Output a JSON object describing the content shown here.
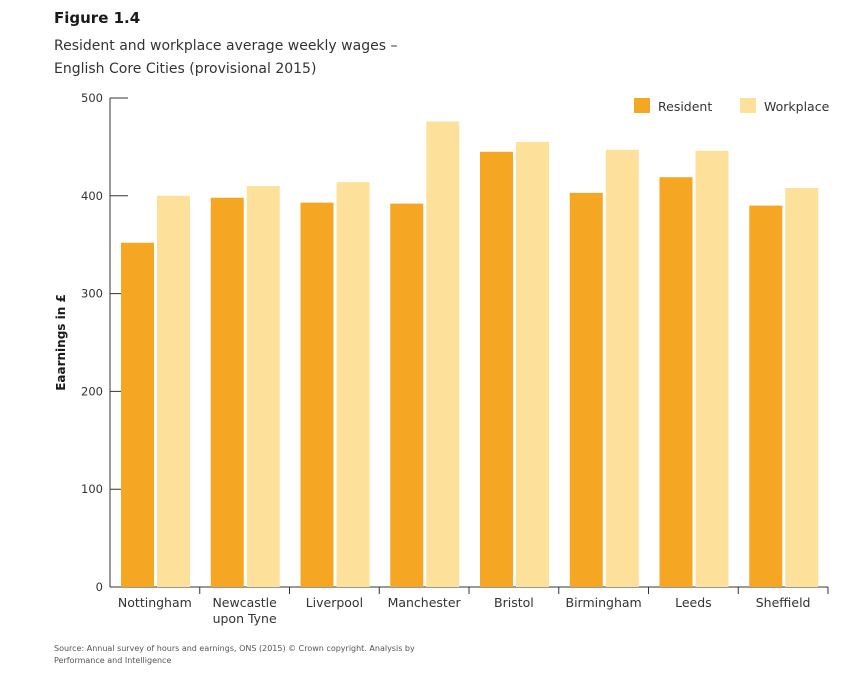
{
  "figure_label": "Figure 1.4",
  "title_lines": [
    "Resident and workplace average weekly wages –",
    "English Core Cities (provisional 2015)"
  ],
  "source_lines": [
    "Source: Annual survey of hours and earnings, ONS (2015) © Crown copyright. Analysis by",
    "Performance and Intelligence"
  ],
  "chart_data": {
    "type": "bar",
    "title": "Resident and workplace average weekly wages – English Core Cities (provisional 2015)",
    "ylabel": "Eaarnings in £",
    "xlabel": "",
    "ylim": [
      0,
      500
    ],
    "yticks": [
      0,
      100,
      200,
      300,
      400,
      500
    ],
    "categories": [
      [
        "Nottingham"
      ],
      [
        "Newcastle",
        "upon Tyne"
      ],
      [
        "Liverpool"
      ],
      [
        "Manchester"
      ],
      [
        "Bristol"
      ],
      [
        "Birmingham"
      ],
      [
        "Leeds"
      ],
      [
        "Sheffield"
      ]
    ],
    "series": [
      {
        "name": "Resident",
        "color": "#F5A623",
        "values": [
          352,
          398,
          393,
          392,
          445,
          403,
          419,
          390
        ]
      },
      {
        "name": "Workplace",
        "color": "#FDE19A",
        "values": [
          400,
          410,
          414,
          476,
          455,
          447,
          446,
          408
        ]
      }
    ],
    "legend_position": "top-right",
    "grid": false
  }
}
